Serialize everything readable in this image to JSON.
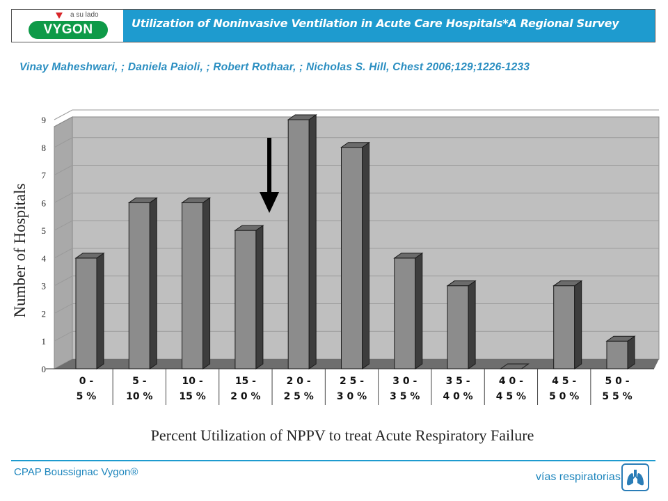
{
  "header": {
    "logo_tagline": "a su lado",
    "logo_text": "VYGON",
    "title": "Utilization of Noninvasive Ventilation in Acute Care Hospitals*A Regional Survey"
  },
  "authors": "Vinay Maheshwari, ; Daniela Paioli, ; Robert Rothaar, ; Nicholas S. Hill, Chest 2006;129;1226-1233",
  "footer": {
    "left_text": "CPAP Boussignac Vygon®",
    "right_text": "vías respiratorias",
    "icon": "lungs-icon"
  },
  "colors": {
    "accent": "#1e9bcf",
    "logo_green": "#0e9a48",
    "bar_front": "#8c8c8c",
    "bar_side": "#3d3d3d",
    "bar_top": "#6b6b6b",
    "plot_bg": "#bfbfbf",
    "floor": "#6e6e6e"
  },
  "chart_data": {
    "type": "bar",
    "categories": [
      [
        "0  -",
        "5 %"
      ],
      [
        "5 -",
        "10 %"
      ],
      [
        "10 -",
        "15 %"
      ],
      [
        "15  -",
        "2 0 %"
      ],
      [
        "2 0 -",
        "2 5 %"
      ],
      [
        "2 5  -",
        "3 0 %"
      ],
      [
        "3 0  -",
        "3 5 %"
      ],
      [
        "3 5  -",
        "4 0 %"
      ],
      [
        "4 0  -",
        "4 5 %"
      ],
      [
        "4 5  -",
        "5 0 %"
      ],
      [
        "5 0  -",
        "5 5 %"
      ]
    ],
    "values": [
      4,
      6,
      6,
      5,
      9,
      8,
      4,
      3,
      0,
      3,
      1
    ],
    "ylim": [
      0,
      9
    ],
    "yticks": [
      0,
      1,
      2,
      3,
      4,
      5,
      6,
      7,
      8,
      9
    ],
    "xlabel": "Percent Utilization of NPPV to treat Acute Respiratory Failure",
    "ylabel": "Number of Hospitals",
    "grid": true,
    "style": "3d",
    "annotation": "down-arrow"
  }
}
